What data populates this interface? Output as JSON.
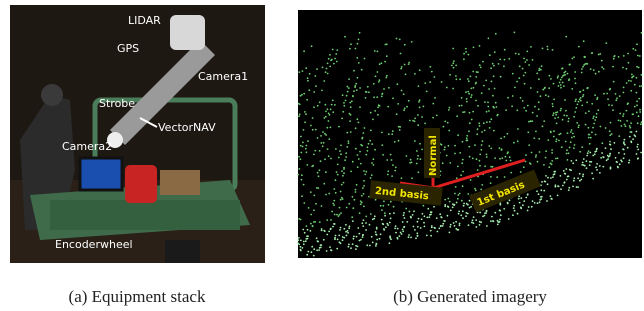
{
  "figure": {
    "panels": [
      {
        "labels": [
          "LIDAR",
          "GPS",
          "Camera1",
          "Strobe",
          "VectorNAV",
          "Camera2",
          "Encoderwheel"
        ],
        "caption": "(a) Equipment stack"
      },
      {
        "labels": [
          "Normal",
          "2nd basis",
          "1st basis"
        ],
        "caption": "(b) Generated imagery"
      }
    ]
  }
}
